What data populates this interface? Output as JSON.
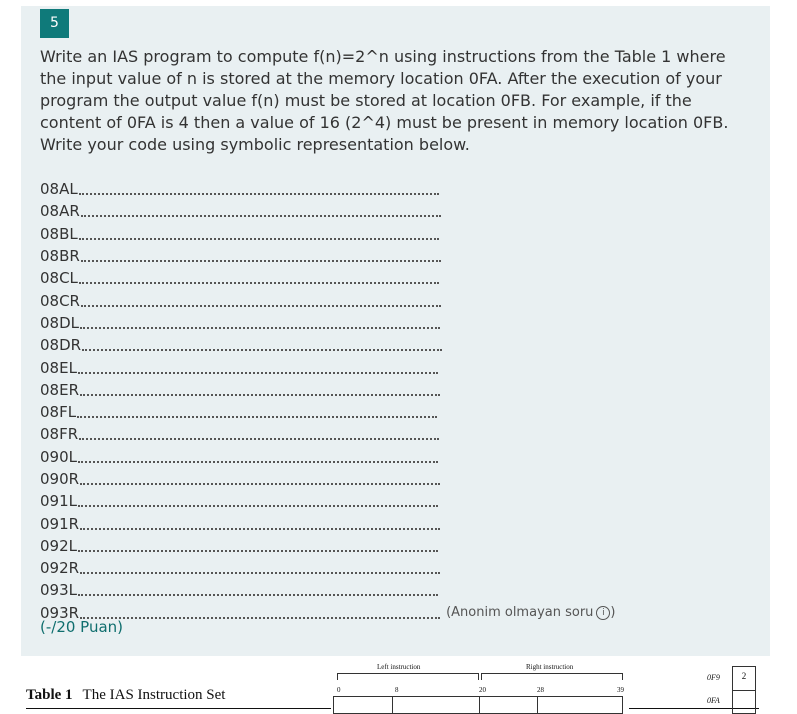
{
  "question": {
    "number": "5",
    "text": "Write an IAS program to compute f(n)=2^n using instructions from the Table 1 where the input value of n is stored at the memory location 0FA. After the execution of your program the output value f(n) must be stored at location 0FB. For example, if the content of 0FA is 4 then a value of 16 (2^4) must be present in memory location 0FB. Write your code using symbolic representation below.",
    "lines": [
      "08AL",
      "08AR",
      "08BL",
      "08BR",
      "08CL",
      "08CR",
      "08DL",
      "08DR",
      "08EL",
      "08ER",
      "08FL",
      "08FR",
      "090L",
      "090R",
      "091L",
      "091R",
      "092L",
      "092R",
      "093L",
      "093R"
    ],
    "anonymous_note": "(Anonim olmayan soru",
    "anonymous_close": ")",
    "info_icon": "i",
    "points": "(-/20 Puan)"
  },
  "table": {
    "number": "Table 1",
    "title": "The IAS Instruction Set",
    "left_header": "Left instruction",
    "right_header": "Right instruction",
    "bits": [
      "0",
      "8",
      "20",
      "28",
      "39"
    ],
    "mem_labels": [
      "0F9",
      "0FA"
    ],
    "mem_value": "2"
  },
  "colors": {
    "accent": "#0f7a7a",
    "card": "#e9f0f2"
  }
}
